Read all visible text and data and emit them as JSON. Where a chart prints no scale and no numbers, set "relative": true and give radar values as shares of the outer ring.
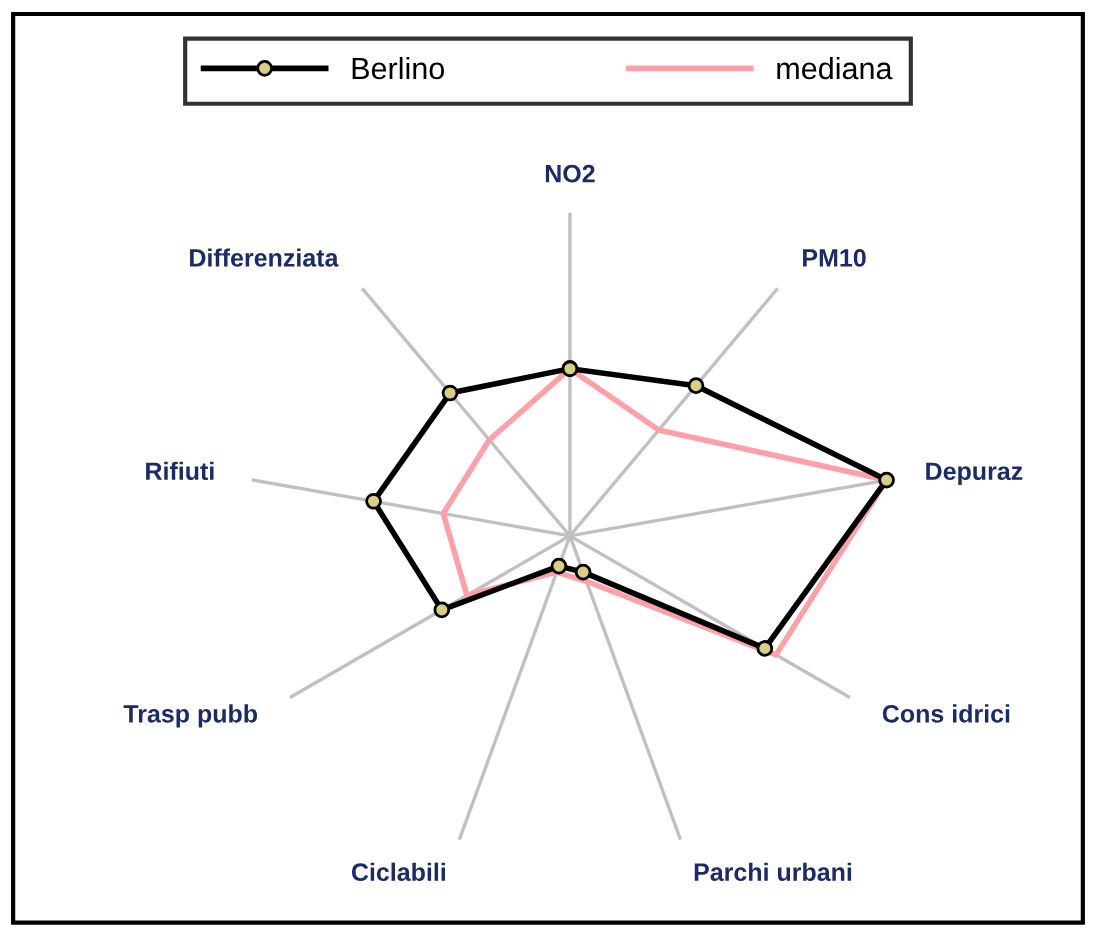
{
  "chart_data": {
    "type": "radar",
    "relative": true,
    "categories": [
      "NO2",
      "PM10",
      "Depuraz",
      "Cons idrici",
      "Parchi urbani",
      "Ciclabili",
      "Trasp pubb",
      "Rifiuti",
      "Differenziata"
    ],
    "series": [
      {
        "name": "Berlino",
        "color": "#000000",
        "marker": "circle",
        "values": [
          0.52,
          0.61,
          1.0,
          0.7,
          0.12,
          0.1,
          0.46,
          0.62,
          0.58
        ]
      },
      {
        "name": "mediana",
        "color": "#ffa0a8",
        "marker": "none",
        "values": [
          0.52,
          0.43,
          1.0,
          0.74,
          0.15,
          0.12,
          0.37,
          0.4,
          0.39
        ]
      }
    ],
    "legend": "top",
    "grid": true
  }
}
